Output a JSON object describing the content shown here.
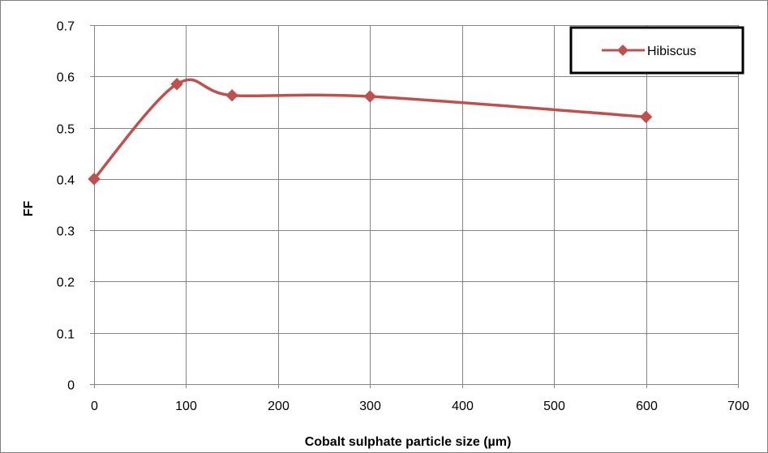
{
  "chart_data": {
    "type": "line",
    "title": "",
    "xlabel": "Cobalt sulphate particle size (µm)",
    "ylabel": "FF",
    "xlim": [
      0,
      700
    ],
    "ylim": [
      0,
      0.7
    ],
    "x_ticks": [
      0,
      100,
      200,
      300,
      400,
      500,
      600,
      700
    ],
    "y_ticks": [
      0,
      0.1,
      0.2,
      0.3,
      0.4,
      0.5,
      0.6,
      0.7
    ],
    "x_tick_labels": [
      "0",
      "100",
      "200",
      "300",
      "400",
      "500",
      "600",
      "700"
    ],
    "y_tick_labels": [
      "0",
      "0.1",
      "0.2",
      "0.3",
      "0.4",
      "0.5",
      "0.6",
      "0.7"
    ],
    "grid": true,
    "smoothed": true,
    "legend_position": "top-right",
    "series": [
      {
        "name": "Hibiscus",
        "color": "#c0504d",
        "marker": "diamond",
        "x": [
          0,
          90,
          150,
          300,
          600
        ],
        "y": [
          0.4,
          0.585,
          0.563,
          0.561,
          0.521
        ]
      }
    ]
  }
}
